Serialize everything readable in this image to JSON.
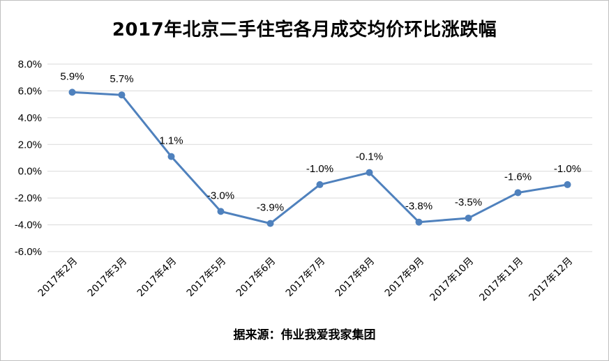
{
  "chart_data": {
    "type": "line",
    "title": "2017年北京二手住宅各月成交均价环比涨跌幅",
    "source": "据来源：伟业我爱我家集团",
    "categories": [
      "2017年2月",
      "2017年3月",
      "2017年4月",
      "2017年5月",
      "2017年6月",
      "2017年7月",
      "2017年8月",
      "2017年9月",
      "2017年10月",
      "2017年11月",
      "2017年12月"
    ],
    "series": [
      {
        "values": [
          5.9,
          5.7,
          1.1,
          -3.0,
          -3.9,
          -1.0,
          -0.1,
          -3.8,
          -3.5,
          -1.6,
          -1.0
        ],
        "data_labels": [
          "5.9%",
          "5.7%",
          "1.1%",
          "-3.0%",
          "-3.9%",
          "-1.0%",
          "-0.1%",
          "-3.8%",
          "-3.5%",
          "-1.6%",
          "-1.0%"
        ],
        "color": "#4f81bd"
      }
    ],
    "y_ticks": [
      "8.0%",
      "6.0%",
      "4.0%",
      "2.0%",
      "0.0%",
      "-2.0%",
      "-4.0%",
      "-6.0%"
    ],
    "ylim": [
      -6.0,
      8.0
    ],
    "y_unit": "%",
    "grid": true,
    "gridline_color": "#d9d9d9"
  }
}
